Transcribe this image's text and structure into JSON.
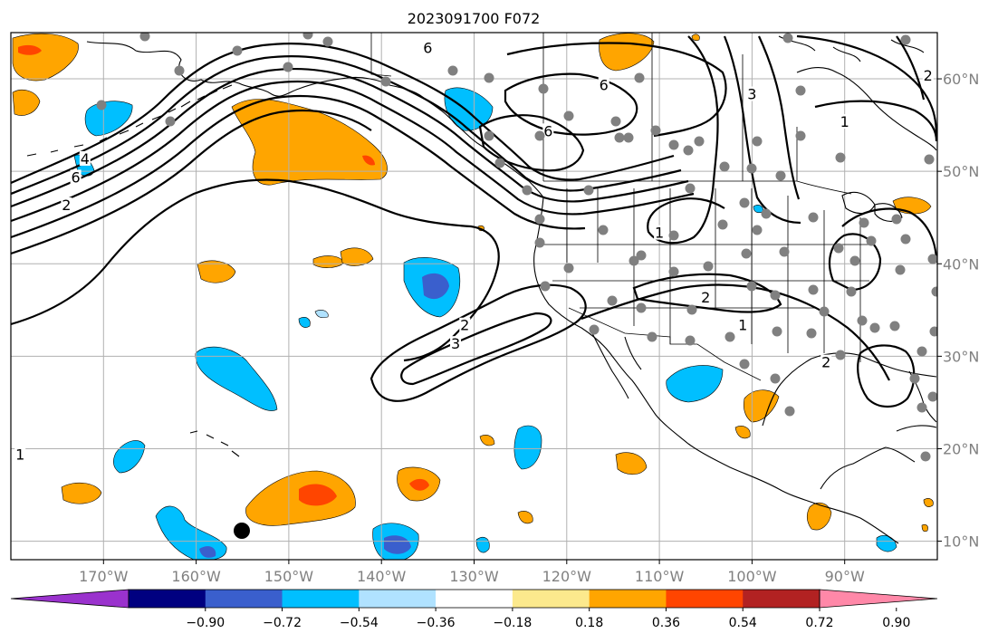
{
  "title": "2023091700 F072",
  "map": {
    "lon_range": [
      -180,
      -80
    ],
    "lat_range": [
      8,
      65
    ],
    "lon_ticks": [
      {
        "value": -170,
        "label": "170°W"
      },
      {
        "value": -160,
        "label": "160°W"
      },
      {
        "value": -150,
        "label": "150°W"
      },
      {
        "value": -140,
        "label": "140°W"
      },
      {
        "value": -130,
        "label": "130°W"
      },
      {
        "value": -120,
        "label": "120°W"
      },
      {
        "value": -110,
        "label": "110°W"
      },
      {
        "value": -100,
        "label": "100°W"
      },
      {
        "value": -90,
        "label": "90°W"
      }
    ],
    "lat_ticks": [
      {
        "value": 10,
        "label": "10°N"
      },
      {
        "value": 20,
        "label": "20°N"
      },
      {
        "value": 30,
        "label": "30°N"
      },
      {
        "value": 40,
        "label": "40°N"
      },
      {
        "value": 50,
        "label": "50°N"
      },
      {
        "value": 60,
        "label": "60°N"
      }
    ],
    "grid": true,
    "contour_labels": [
      {
        "text": "6",
        "lon": -135,
        "lat": 63
      },
      {
        "text": "6",
        "lon": -116,
        "lat": 59
      },
      {
        "text": "6",
        "lon": -122,
        "lat": 54
      },
      {
        "text": "6",
        "lon": -173,
        "lat": 49
      },
      {
        "text": "4",
        "lon": -172,
        "lat": 51
      },
      {
        "text": "2",
        "lon": -174,
        "lat": 46
      },
      {
        "text": "1",
        "lon": -110,
        "lat": 43
      },
      {
        "text": "2",
        "lon": -105,
        "lat": 36
      },
      {
        "text": "1",
        "lon": -101,
        "lat": 33
      },
      {
        "text": "2",
        "lon": -131,
        "lat": 33
      },
      {
        "text": "3",
        "lon": -132,
        "lat": 31
      },
      {
        "text": "1",
        "lon": -90,
        "lat": 55
      },
      {
        "text": "2",
        "lon": -81,
        "lat": 60
      },
      {
        "text": "3",
        "lon": -100,
        "lat": 58
      },
      {
        "text": "2",
        "lon": -92,
        "lat": 29
      },
      {
        "text": "1",
        "lon": -179,
        "lat": 19
      }
    ]
  },
  "colorbar": {
    "colors": [
      "#9a32cd",
      "#000080",
      "#3a5fcd",
      "#00bfff",
      "#b0e2ff",
      "#ffffff",
      "#fce98d",
      "#ffa500",
      "#ff4500",
      "#b22222",
      "#ff88a8"
    ],
    "tick_labels": [
      "−0.90",
      "−0.72",
      "−0.54",
      "−0.36",
      "−0.18",
      "0.18",
      "0.36",
      "0.54",
      "0.72",
      "0.90"
    ]
  },
  "colors": {
    "dot": "#808080",
    "marker": "#000000",
    "grid": "#b0b0b0"
  }
}
